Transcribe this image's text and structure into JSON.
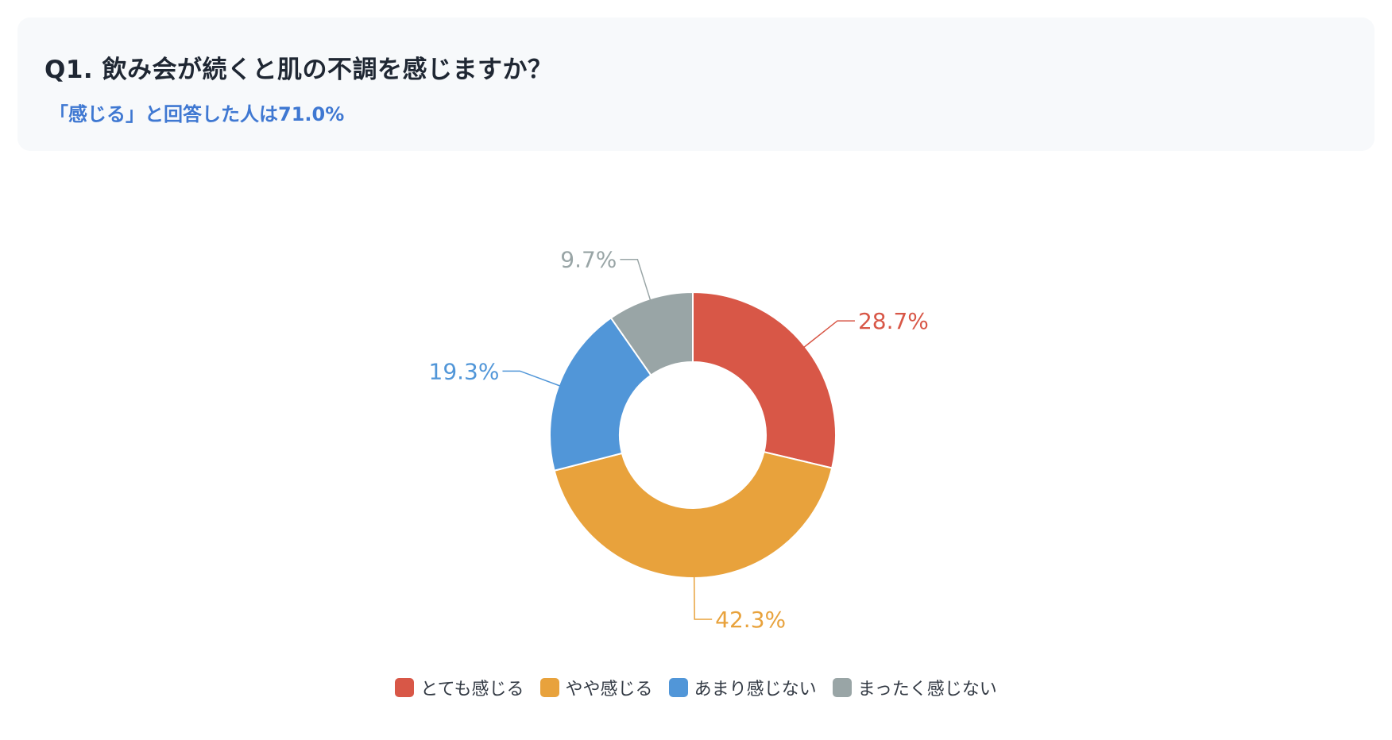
{
  "question": {
    "title": "Q1. 飲み会が続くと肌の不調を感じますか？",
    "subtitle": "「感じる」と回答した人は71.0%"
  },
  "chart_data": {
    "type": "pie",
    "variant": "donut",
    "categories": [
      "とても感じる",
      "やや感じる",
      "あまり感じない",
      "まったく感じない"
    ],
    "values": [
      28.7,
      42.3,
      19.3,
      9.7
    ],
    "labels": [
      "28.7%",
      "42.3%",
      "19.3%",
      "9.7%"
    ],
    "colors": [
      "#d85747",
      "#e8a23c",
      "#5196d8",
      "#99a5a6"
    ],
    "legend_position": "bottom-center"
  }
}
